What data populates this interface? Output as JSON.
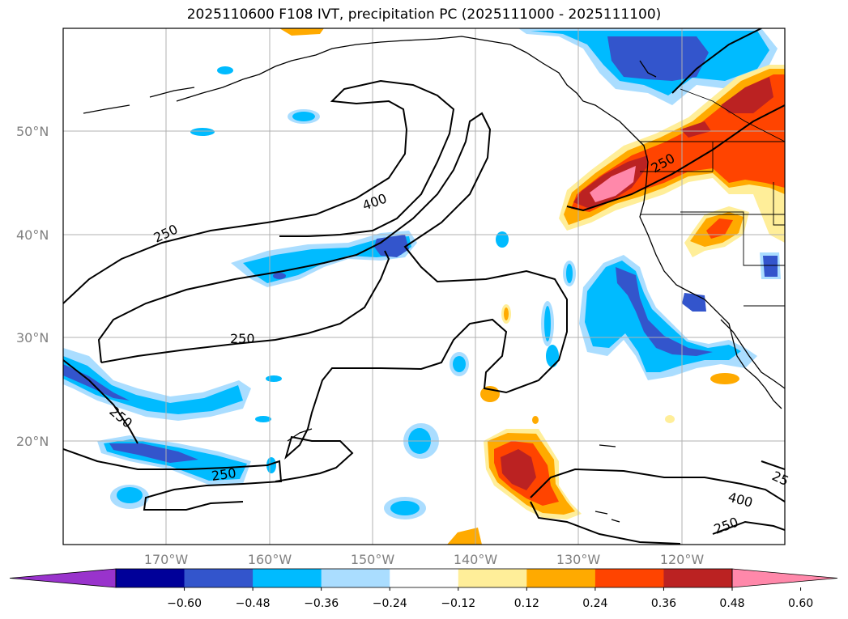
{
  "title": "2025110600 F108 IVT, precipitation PC (2025111000 - 2025111100)",
  "map": {
    "lat_labels": [
      "50°N",
      "40°N",
      "30°N",
      "20°N"
    ],
    "lon_labels": [
      "170°W",
      "160°W",
      "150°W",
      "140°W",
      "130°W",
      "120°W"
    ],
    "contour_labels": [
      "250",
      "400",
      "250",
      "250",
      "250",
      "400",
      "250",
      "25"
    ]
  },
  "colorbar": {
    "ticks": [
      "−0.60",
      "−0.48",
      "−0.36",
      "−0.24",
      "−0.12",
      "0.12",
      "0.24",
      "0.36",
      "0.48",
      "0.60"
    ],
    "colors": [
      "#9933cc",
      "#000099",
      "#3355cc",
      "#00bbff",
      "#aaddff",
      "#ffffff",
      "#ffee99",
      "#ffaa00",
      "#ff4400",
      "#bb2222",
      "#ff88aa"
    ]
  }
}
